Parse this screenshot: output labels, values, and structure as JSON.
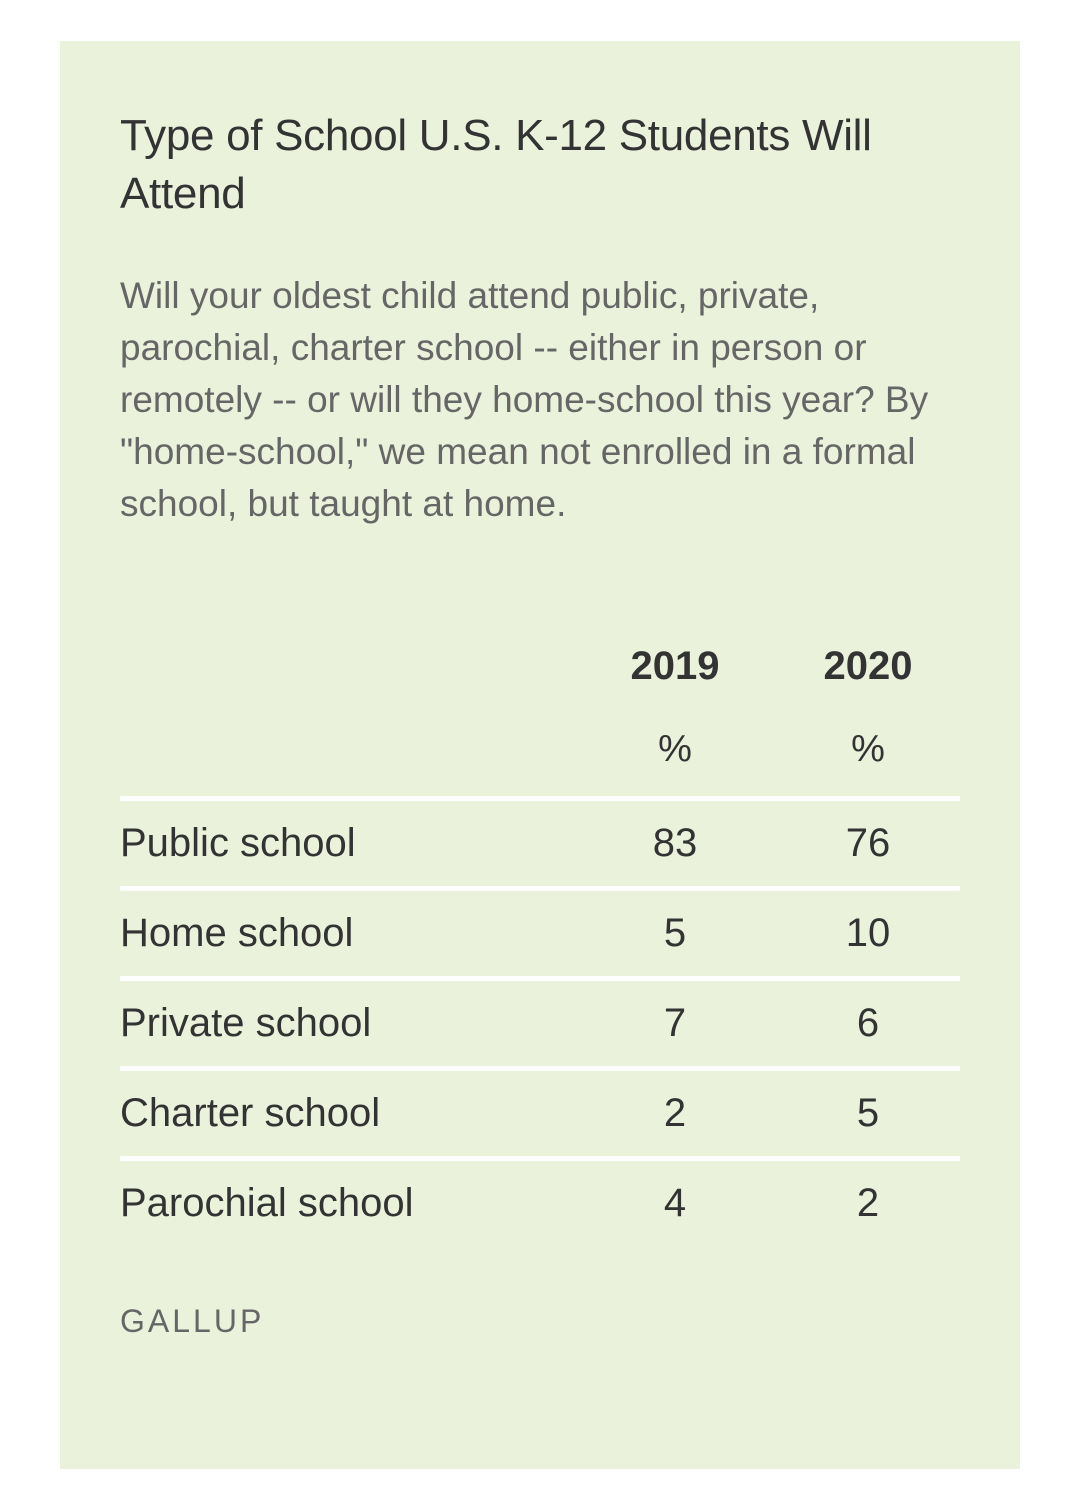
{
  "title": "Type of School U.S. K-12 Students Will Attend",
  "subtitle": "Will your oldest child attend public, private, parochial, charter school -- either in person or remotely -- or will they home-school this year? By \"home-school,\" we mean not enrolled in a formal school, but taught at home.",
  "source": "GALLUP",
  "colors": {
    "card_background": "#ebf2dc",
    "rule": "#ffffff",
    "text": "#333333",
    "muted_text": "#666666"
  },
  "chart_data": {
    "type": "table",
    "columns": [
      {
        "year": "2019",
        "unit": "%"
      },
      {
        "year": "2020",
        "unit": "%"
      }
    ],
    "rows": [
      {
        "label": "Public school",
        "values": [
          "83",
          "76"
        ]
      },
      {
        "label": "Home school",
        "values": [
          "5",
          "10"
        ]
      },
      {
        "label": "Private school",
        "values": [
          "7",
          "6"
        ]
      },
      {
        "label": "Charter school",
        "values": [
          "2",
          "5"
        ]
      },
      {
        "label": "Parochial school",
        "values": [
          "4",
          "2"
        ]
      }
    ]
  }
}
